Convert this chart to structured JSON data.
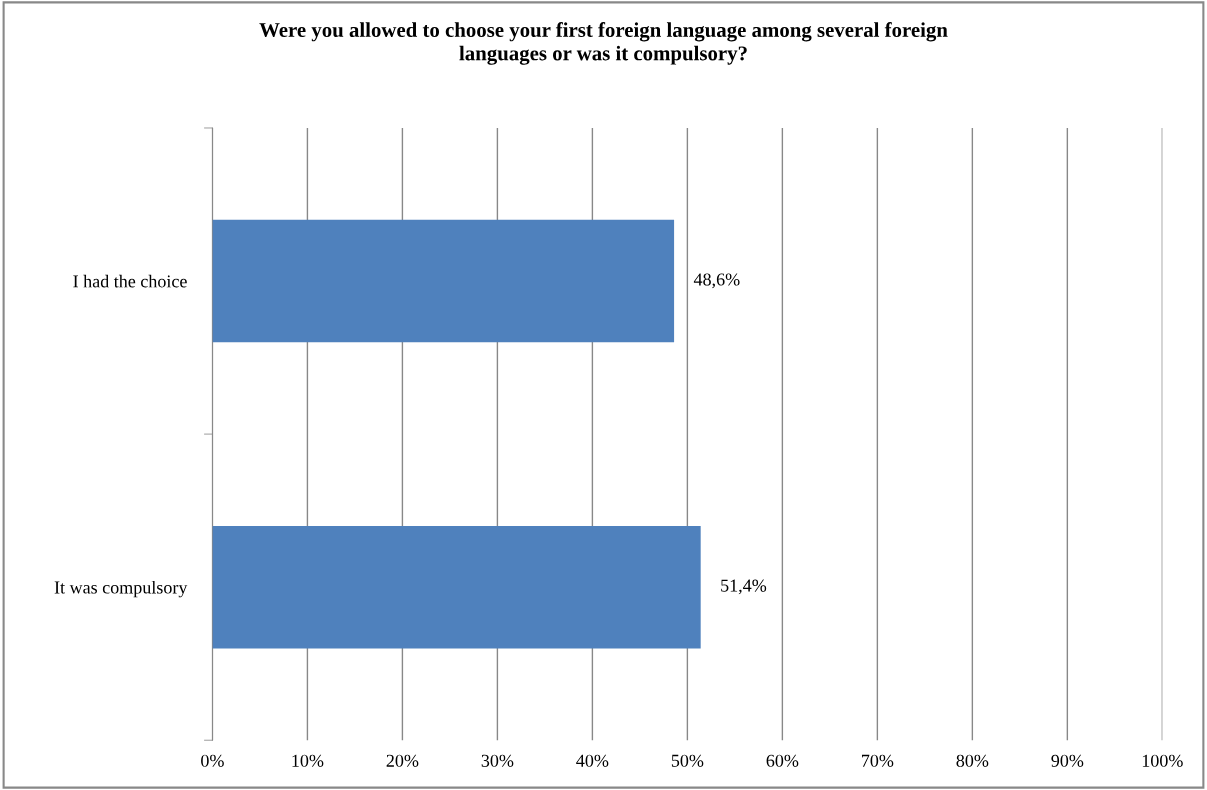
{
  "chart_data": {
    "type": "bar",
    "orientation": "horizontal",
    "title": "Were you allowed to choose your first foreign language among several foreign\nlanguages or was it compulsory?",
    "categories": [
      "I had the choice",
      "It was compulsory"
    ],
    "series": [
      {
        "color": "#4f81bd",
        "values": [
          48.6,
          51.4
        ],
        "value_labels": [
          "48,6%",
          "51,4%"
        ]
      }
    ],
    "xlim": [
      0,
      100
    ],
    "xticks": [
      {
        "value": 0,
        "label": "0%"
      },
      {
        "value": 10,
        "label": "10%"
      },
      {
        "value": 20,
        "label": "20%"
      },
      {
        "value": 30,
        "label": "30%"
      },
      {
        "value": 40,
        "label": "40%"
      },
      {
        "value": 50,
        "label": "50%"
      },
      {
        "value": 60,
        "label": "60%"
      },
      {
        "value": 70,
        "label": "70%"
      },
      {
        "value": 80,
        "label": "80%"
      },
      {
        "value": 90,
        "label": "90%"
      },
      {
        "value": 100,
        "label": "100%"
      }
    ],
    "grid": "x",
    "legend": false
  }
}
